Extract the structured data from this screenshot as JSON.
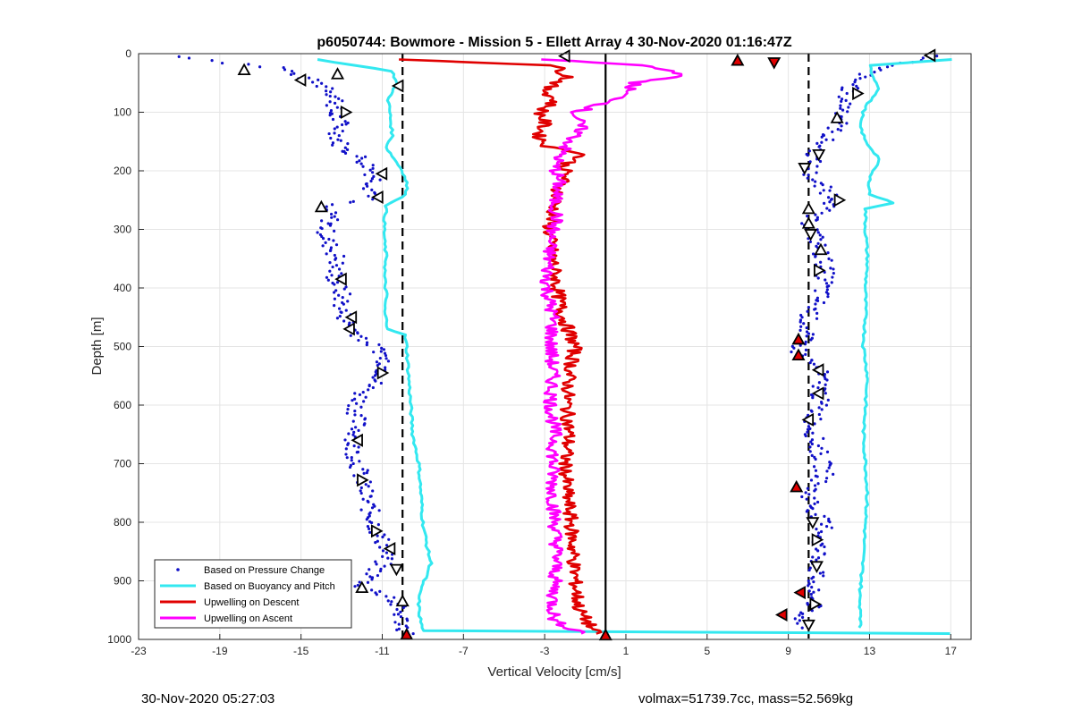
{
  "chart_data": {
    "type": "scatter",
    "title": "p6050744: Bowmore - Mission 5 - Ellett Array 4 30-Nov-2020 01:16:47Z",
    "xlabel": "Vertical Velocity [cm/s]",
    "ylabel": "Depth [m]",
    "xlim": [
      -23,
      18
    ],
    "ylim": [
      1000,
      0
    ],
    "y_reversed": true,
    "grid": true,
    "x_ticks": [
      -23,
      -19,
      -15,
      -11,
      -7,
      -3,
      1,
      5,
      9,
      13,
      17
    ],
    "y_ticks": [
      0,
      100,
      200,
      300,
      400,
      500,
      600,
      700,
      800,
      900,
      1000
    ],
    "legend_position": "bottom-left",
    "legend": [
      {
        "label": "Based on Pressure Change",
        "style": "dots",
        "color": "#1010c8"
      },
      {
        "label": "Based on Buoyancy and Pitch",
        "style": "line",
        "color": "#33e8f0"
      },
      {
        "label": "Upwelling on Descent",
        "style": "line",
        "color": "#e00000"
      },
      {
        "label": "Upwelling on Ascent",
        "style": "line",
        "color": "#ff00ff"
      }
    ],
    "reference_lines": [
      {
        "x": -10,
        "style": "dashed"
      },
      {
        "x": 10,
        "style": "dashed"
      },
      {
        "x": 0,
        "style": "solid"
      }
    ],
    "series": [
      {
        "name": "Based on Pressure Change",
        "role": "pressure_descent",
        "color": "#1010c8",
        "depth": [
          5,
          15,
          25,
          40,
          60,
          80,
          100,
          120,
          140,
          160,
          180,
          200,
          215,
          230,
          245,
          260,
          280,
          300,
          320,
          350,
          380,
          410,
          440,
          470,
          490,
          510,
          530,
          550,
          580,
          610,
          640,
          670,
          700,
          730,
          760,
          790,
          820,
          845,
          870,
          890,
          910,
          930,
          950,
          970,
          990
        ],
        "x": [
          -21,
          -18.5,
          -16,
          -15,
          -13.5,
          -13.2,
          -13.5,
          -13,
          -13.2,
          -13,
          -12,
          -11.5,
          -11.3,
          -11.5,
          -11.3,
          -14,
          -13.5,
          -13.8,
          -13.7,
          -13.2,
          -13.4,
          -13,
          -13,
          -12.5,
          -11.8,
          -11,
          -10.8,
          -11,
          -12,
          -12.3,
          -12.2,
          -12.5,
          -12.2,
          -12,
          -11.8,
          -11.5,
          -11.2,
          -10.8,
          -11,
          -11.5,
          -12,
          -10.5,
          -10.2,
          -10,
          -9.8
        ]
      },
      {
        "name": "Based on Pressure Change",
        "role": "pressure_ascent",
        "color": "#1010c8",
        "depth": [
          5,
          20,
          40,
          60,
          80,
          100,
          120,
          140,
          160,
          180,
          200,
          220,
          250,
          280,
          300,
          330,
          360,
          390,
          420,
          450,
          480,
          510,
          540,
          570,
          600,
          630,
          660,
          690,
          720,
          750,
          780,
          810,
          840,
          870,
          900,
          920,
          940,
          960,
          980
        ],
        "x": [
          16.5,
          13.8,
          12.5,
          12,
          11.8,
          11.8,
          11.5,
          11,
          10.5,
          10.2,
          10,
          10.3,
          11.5,
          10,
          10.2,
          10.5,
          10.8,
          10.8,
          10.5,
          10,
          9.8,
          9.5,
          10.5,
          10.6,
          10.5,
          10.2,
          10.3,
          10.6,
          10.8,
          10,
          10.3,
          10.8,
          10.5,
          10.5,
          10.2,
          10,
          10.3,
          9.5,
          10
        ]
      },
      {
        "name": "Based on Buoyancy and Pitch",
        "role": "model_descent",
        "color": "#33e8f0",
        "depth": [
          10,
          30,
          50,
          80,
          110,
          140,
          160,
          180,
          200,
          220,
          240,
          260,
          290,
          320,
          350,
          380,
          410,
          440,
          470,
          480,
          500,
          550,
          600,
          650,
          700,
          750,
          800,
          840,
          870,
          890,
          910,
          930,
          950,
          970,
          985,
          990
        ],
        "x": [
          -14.2,
          -10.5,
          -10.3,
          -10.7,
          -10.6,
          -10.5,
          -10.8,
          -10.4,
          -10,
          -9.8,
          -9.8,
          -10.8,
          -10.9,
          -10.9,
          -10.8,
          -10.9,
          -10.8,
          -10.9,
          -10.7,
          -9.9,
          -9.8,
          -9.7,
          -9.6,
          -9.5,
          -9.2,
          -9.1,
          -9,
          -8.8,
          -8.6,
          -8.8,
          -9.1,
          -9.2,
          -9.2,
          -9.1,
          -9,
          17
        ]
      },
      {
        "name": "Based on Buoyancy and Pitch",
        "role": "model_ascent",
        "color": "#33e8f0",
        "depth": [
          10,
          20,
          40,
          60,
          90,
          120,
          150,
          180,
          210,
          240,
          255,
          265,
          300,
          350,
          400,
          450,
          500,
          550,
          600,
          650,
          700,
          750,
          800,
          850,
          900,
          930,
          960,
          980
        ],
        "x": [
          17,
          13,
          13.2,
          13.5,
          12.8,
          12.5,
          12.8,
          13.5,
          13,
          13,
          14.2,
          12.8,
          12.8,
          12.9,
          12.8,
          12.8,
          12.7,
          12.9,
          12.8,
          12.7,
          12.8,
          12.9,
          12.8,
          12.7,
          12.6,
          12.5,
          12.6,
          12.5
        ]
      },
      {
        "name": "Upwelling on Descent",
        "role": "upwelling_descent",
        "color": "#e00000",
        "depth": [
          10,
          20,
          40,
          60,
          80,
          100,
          120,
          140,
          160,
          170,
          190,
          210,
          230,
          260,
          300,
          350,
          400,
          450,
          500,
          550,
          600,
          650,
          700,
          750,
          800,
          850,
          900,
          950,
          990
        ],
        "x": [
          -10,
          -2.5,
          -1.8,
          -3,
          -2.5,
          -3.2,
          -3,
          -3.3,
          -2.8,
          -1,
          -2,
          -2,
          -2.3,
          -2.5,
          -2.8,
          -2.6,
          -2.4,
          -2.1,
          -1.5,
          -1.8,
          -1.9,
          -1.8,
          -2,
          -1.9,
          -1.7,
          -1.6,
          -1.5,
          -1.3,
          -0.5
        ]
      },
      {
        "name": "Upwelling on Ascent",
        "role": "upwelling_ascent",
        "color": "#ff00ff",
        "depth": [
          10,
          20,
          35,
          50,
          80,
          100,
          130,
          160,
          190,
          220,
          250,
          280,
          310,
          350,
          400,
          450,
          500,
          550,
          600,
          650,
          700,
          750,
          800,
          850,
          900,
          940,
          970,
          990
        ],
        "x": [
          -3,
          1.8,
          4,
          1.5,
          0.5,
          -1.5,
          -1.2,
          -2,
          -2.5,
          -2.3,
          -2.5,
          -2.4,
          -2.7,
          -2.8,
          -2.9,
          -2.6,
          -2.7,
          -2.6,
          -2.7,
          -2.5,
          -2.6,
          -2.6,
          -2.5,
          -2.4,
          -2.5,
          -2.6,
          -2.5,
          -1
        ]
      }
    ],
    "markers": [
      {
        "x": -17.8,
        "depth": 28,
        "shape": "tri-up",
        "fill": "white"
      },
      {
        "x": -15,
        "depth": 45,
        "shape": "tri-left",
        "fill": "white"
      },
      {
        "x": -13.2,
        "depth": 35,
        "shape": "tri-up",
        "fill": "white"
      },
      {
        "x": -10.2,
        "depth": 55,
        "shape": "tri-left",
        "fill": "white"
      },
      {
        "x": -12.8,
        "depth": 100,
        "shape": "tri-right",
        "fill": "white"
      },
      {
        "x": -11,
        "depth": 205,
        "shape": "tri-left",
        "fill": "white"
      },
      {
        "x": -11.2,
        "depth": 245,
        "shape": "tri-left",
        "fill": "white"
      },
      {
        "x": -14,
        "depth": 262,
        "shape": "tri-up",
        "fill": "white"
      },
      {
        "x": -13,
        "depth": 385,
        "shape": "tri-left",
        "fill": "white"
      },
      {
        "x": -12.5,
        "depth": 450,
        "shape": "tri-left",
        "fill": "white"
      },
      {
        "x": -12.6,
        "depth": 470,
        "shape": "tri-left",
        "fill": "white"
      },
      {
        "x": -11,
        "depth": 545,
        "shape": "tri-right",
        "fill": "white"
      },
      {
        "x": -12.2,
        "depth": 660,
        "shape": "tri-left",
        "fill": "white"
      },
      {
        "x": -12,
        "depth": 728,
        "shape": "tri-right",
        "fill": "white"
      },
      {
        "x": -11.3,
        "depth": 815,
        "shape": "tri-right",
        "fill": "white"
      },
      {
        "x": -10.6,
        "depth": 845,
        "shape": "tri-left",
        "fill": "white"
      },
      {
        "x": -10.3,
        "depth": 880,
        "shape": "tri-down",
        "fill": "white"
      },
      {
        "x": -12,
        "depth": 912,
        "shape": "tri-up",
        "fill": "white"
      },
      {
        "x": -10,
        "depth": 935,
        "shape": "tri-up",
        "fill": "white"
      },
      {
        "x": -9.8,
        "depth": 992,
        "shape": "tri-up",
        "fill": "red"
      },
      {
        "x": -2,
        "depth": 4,
        "shape": "tri-left",
        "fill": "white"
      },
      {
        "x": 0,
        "depth": 993,
        "shape": "tri-up",
        "fill": "red"
      },
      {
        "x": 6.5,
        "depth": 12,
        "shape": "tri-up",
        "fill": "red"
      },
      {
        "x": 8.3,
        "depth": 15,
        "shape": "tri-down",
        "fill": "red"
      },
      {
        "x": 16,
        "depth": 3,
        "shape": "tri-left",
        "fill": "white"
      },
      {
        "x": 12.4,
        "depth": 68,
        "shape": "tri-right",
        "fill": "white"
      },
      {
        "x": 11.4,
        "depth": 110,
        "shape": "tri-up",
        "fill": "white"
      },
      {
        "x": 10.5,
        "depth": 172,
        "shape": "tri-down",
        "fill": "white"
      },
      {
        "x": 9.8,
        "depth": 195,
        "shape": "tri-down",
        "fill": "white"
      },
      {
        "x": 11.5,
        "depth": 250,
        "shape": "tri-right",
        "fill": "white"
      },
      {
        "x": 10,
        "depth": 265,
        "shape": "tri-up",
        "fill": "white"
      },
      {
        "x": 10,
        "depth": 290,
        "shape": "tri-up",
        "fill": "white"
      },
      {
        "x": 10.1,
        "depth": 308,
        "shape": "tri-down",
        "fill": "white"
      },
      {
        "x": 10.6,
        "depth": 335,
        "shape": "tri-up",
        "fill": "white"
      },
      {
        "x": 10.5,
        "depth": 370,
        "shape": "tri-right",
        "fill": "white"
      },
      {
        "x": 9.5,
        "depth": 488,
        "shape": "tri-up",
        "fill": "red"
      },
      {
        "x": 9.5,
        "depth": 515,
        "shape": "tri-up",
        "fill": "red"
      },
      {
        "x": 10.5,
        "depth": 540,
        "shape": "tri-left",
        "fill": "white"
      },
      {
        "x": 10.5,
        "depth": 580,
        "shape": "tri-left",
        "fill": "white"
      },
      {
        "x": 10,
        "depth": 625,
        "shape": "tri-left",
        "fill": "white"
      },
      {
        "x": 9.4,
        "depth": 740,
        "shape": "tri-up",
        "fill": "red"
      },
      {
        "x": 10.2,
        "depth": 800,
        "shape": "tri-down",
        "fill": "white"
      },
      {
        "x": 10.4,
        "depth": 830,
        "shape": "tri-right",
        "fill": "white"
      },
      {
        "x": 10.4,
        "depth": 875,
        "shape": "tri-down",
        "fill": "white"
      },
      {
        "x": 9.6,
        "depth": 920,
        "shape": "tri-left",
        "fill": "red"
      },
      {
        "x": 10.3,
        "depth": 940,
        "shape": "tri-right",
        "fill": "white"
      },
      {
        "x": 8.7,
        "depth": 958,
        "shape": "tri-left",
        "fill": "red"
      },
      {
        "x": 10,
        "depth": 975,
        "shape": "tri-down",
        "fill": "white"
      }
    ]
  },
  "footer": {
    "left": "30-Nov-2020 05:27:03",
    "right": "volmax=51739.7cc, mass=52.569kg"
  }
}
